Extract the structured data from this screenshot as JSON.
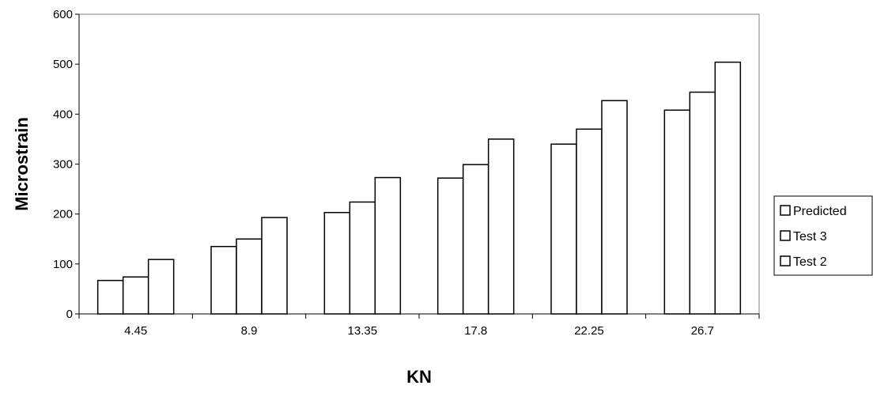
{
  "chart_data": {
    "type": "bar",
    "xlabel": "KN",
    "ylabel": "Microstrain",
    "categories": [
      "4.45",
      "8.9",
      "13.35",
      "17.8",
      "22.25",
      "26.7"
    ],
    "ylim": [
      0,
      600
    ],
    "yticks": [
      0,
      100,
      200,
      300,
      400,
      500,
      600
    ],
    "grid": false,
    "legend_position": "right",
    "series": [
      {
        "name": "Predicted",
        "values": [
          67,
          135,
          203,
          272,
          340,
          408
        ]
      },
      {
        "name": "Test 3",
        "values": [
          74,
          150,
          224,
          299,
          370,
          444
        ]
      },
      {
        "name": "Test 2",
        "values": [
          109,
          193,
          273,
          350,
          427,
          504
        ]
      }
    ],
    "bar_fill": "#ffffff",
    "bar_stroke": "#000000",
    "plot_border": "#808080"
  }
}
